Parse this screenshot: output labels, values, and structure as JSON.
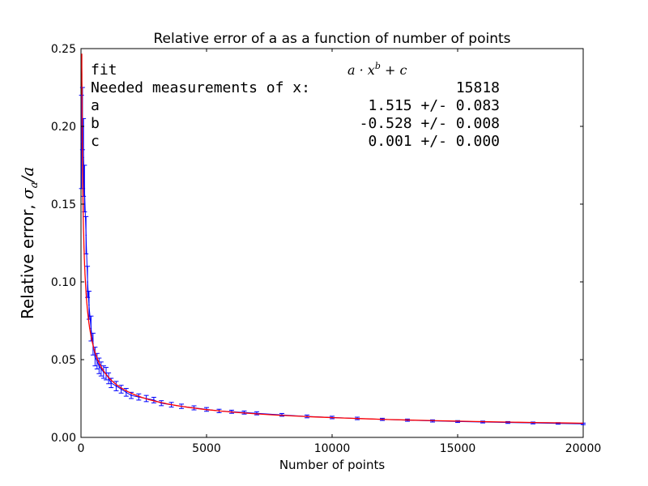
{
  "chart_data": {
    "type": "line",
    "title": "Relative error of a as a function of number of points",
    "xlabel": "Number of points",
    "ylabel_prefix": "Relative error, ",
    "ylabel_math": "σa/a",
    "xlim": [
      0,
      20000
    ],
    "ylim": [
      0,
      0.25
    ],
    "xticks": [
      0,
      5000,
      10000,
      15000,
      20000
    ],
    "xtick_labels": [
      "0",
      "5000",
      "10000",
      "15000",
      "20000"
    ],
    "yticks": [
      0.0,
      0.05,
      0.1,
      0.15,
      0.2,
      0.25
    ],
    "ytick_labels": [
      "0.00",
      "0.05",
      "0.10",
      "0.15",
      "0.20",
      "0.25"
    ],
    "grid": false,
    "series": [
      {
        "kind": "errorbar",
        "color": "#0000ff",
        "x": [
          20,
          60,
          100,
          140,
          200,
          260,
          320,
          400,
          480,
          560,
          640,
          720,
          800,
          900,
          1000,
          1100,
          1200,
          1400,
          1600,
          1800,
          2000,
          2300,
          2600,
          2900,
          3200,
          3600,
          4000,
          4500,
          5000,
          5500,
          6000,
          6500,
          7000,
          8000,
          9000,
          10000,
          11000,
          12000,
          13000,
          14000,
          15000,
          16000,
          17000,
          18000,
          19000,
          20000
        ],
        "y": [
          0.19,
          0.205,
          0.18,
          0.16,
          0.13,
          0.1,
          0.085,
          0.07,
          0.06,
          0.052,
          0.049,
          0.046,
          0.044,
          0.042,
          0.041,
          0.038,
          0.035,
          0.033,
          0.031,
          0.029,
          0.027,
          0.026,
          0.025,
          0.024,
          0.022,
          0.021,
          0.02,
          0.019,
          0.018,
          0.017,
          0.0165,
          0.016,
          0.0155,
          0.0145,
          0.0135,
          0.0128,
          0.0122,
          0.0116,
          0.0111,
          0.0106,
          0.0102,
          0.0099,
          0.0096,
          0.0093,
          0.009,
          0.0087
        ],
        "yerr": [
          0.03,
          0.02,
          0.025,
          0.015,
          0.012,
          0.01,
          0.009,
          0.008,
          0.007,
          0.006,
          0.005,
          0.005,
          0.0045,
          0.004,
          0.004,
          0.0035,
          0.003,
          0.003,
          0.0025,
          0.0025,
          0.002,
          0.002,
          0.002,
          0.0018,
          0.0016,
          0.0015,
          0.0014,
          0.0013,
          0.0012,
          0.0011,
          0.001,
          0.001,
          0.001,
          0.0009,
          0.0009,
          0.0008,
          0.0008,
          0.0007,
          0.0007,
          0.0007,
          0.0006,
          0.0006,
          0.0006,
          0.0006,
          0.0005,
          0.0005
        ]
      },
      {
        "kind": "fit",
        "color": "#ff0000",
        "a": 1.515,
        "b": -0.528,
        "c": 0.001,
        "x_start": 20,
        "x_end": 20000
      }
    ],
    "annotation": {
      "rows": [
        {
          "label": "fit",
          "value": "a·x^b + c",
          "math": true
        },
        {
          "label": "Needed measurements of x:",
          "value": "15818"
        },
        {
          "label": "a",
          "value": "1.515 +/- 0.083"
        },
        {
          "label": "b",
          "value": "-0.528 +/- 0.008"
        },
        {
          "label": "c",
          "value": "0.001 +/- 0.000"
        }
      ]
    }
  }
}
